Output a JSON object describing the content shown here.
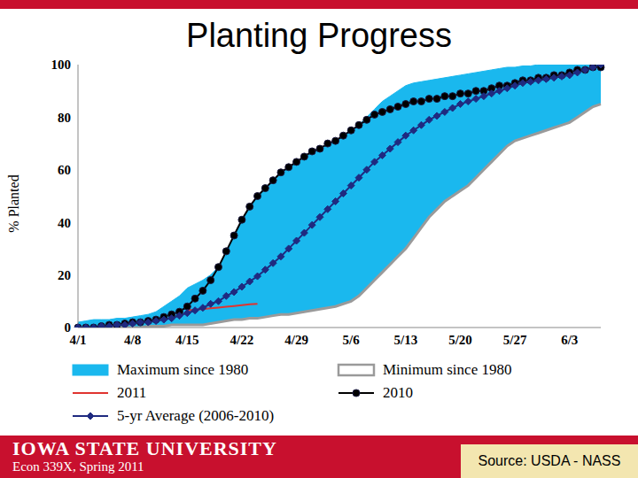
{
  "chart_data": {
    "type": "line",
    "title": "Planting Progress",
    "y_label": "% Planted",
    "categories": [
      "4/1",
      null,
      null,
      null,
      null,
      null,
      null,
      "4/8",
      null,
      null,
      null,
      null,
      null,
      null,
      "4/15",
      null,
      null,
      null,
      null,
      null,
      null,
      "4/22",
      null,
      null,
      null,
      null,
      null,
      null,
      "4/29",
      null,
      null,
      null,
      null,
      null,
      null,
      "5/6",
      null,
      null,
      null,
      null,
      null,
      null,
      "5/13",
      null,
      null,
      null,
      null,
      null,
      null,
      "5/20",
      null,
      null,
      null,
      null,
      null,
      null,
      "5/27",
      null,
      null,
      null,
      null,
      null,
      null,
      "6/3",
      null,
      null,
      null,
      null
    ],
    "ylim": [
      0,
      100
    ],
    "yticks": [
      0,
      20,
      40,
      60,
      80,
      100
    ],
    "grid": false,
    "series": [
      {
        "name": "Maximum since 1980",
        "type": "area",
        "color": "#1ab8ee",
        "values": [
          2,
          2.5,
          3,
          3,
          3,
          3.5,
          3.5,
          4,
          4.5,
          5,
          6,
          8,
          10,
          12,
          15,
          16.5,
          18,
          20,
          23,
          29,
          35,
          41,
          46,
          50,
          53,
          56,
          59,
          61,
          63,
          65,
          67,
          68,
          70,
          71,
          73,
          75,
          77,
          80,
          83,
          86,
          88,
          90,
          92,
          93,
          93.5,
          94,
          94.5,
          95,
          95.5,
          96,
          96.5,
          97,
          97.5,
          98,
          98.5,
          99,
          99,
          99.5,
          99.5,
          100,
          100,
          100,
          100,
          100,
          100,
          100,
          100,
          100
        ]
      },
      {
        "name": "Minimum since 1980",
        "type": "area",
        "color": "#9a9a9a",
        "values": [
          0,
          0,
          0,
          0,
          0,
          0,
          0,
          0,
          0,
          0.5,
          0.5,
          0.5,
          1,
          1,
          1,
          1,
          1,
          1.5,
          2,
          2.5,
          3,
          3,
          3.5,
          3.5,
          4,
          4.5,
          5,
          5,
          5.5,
          6,
          6.5,
          7,
          7.5,
          8,
          9,
          10,
          12,
          15,
          18,
          21,
          24,
          27,
          30,
          34,
          38,
          42,
          45,
          48,
          50,
          52,
          54,
          57,
          60,
          63,
          66,
          69,
          71,
          72,
          73,
          74,
          75,
          76,
          77,
          78,
          80,
          82,
          84,
          85
        ]
      },
      {
        "name": "2011",
        "type": "line",
        "color": "#e0342f",
        "marker": "none",
        "line_style": "solid",
        "values": [
          null,
          null,
          null,
          null,
          null,
          null,
          null,
          null,
          null,
          null,
          null,
          null,
          null,
          null,
          6.5,
          6.8,
          7,
          7.3,
          7.6,
          7.9,
          8.2,
          8.5,
          8.8,
          9,
          null,
          null,
          null,
          null,
          null,
          null,
          null,
          null,
          null,
          null,
          null,
          null,
          null,
          null,
          null,
          null,
          null,
          null,
          null,
          null,
          null,
          null,
          null,
          null,
          null,
          null,
          null,
          null,
          null,
          null,
          null,
          null,
          null,
          null,
          null,
          null,
          null,
          null,
          null,
          null,
          null,
          null,
          null,
          null
        ]
      },
      {
        "name": "2010",
        "type": "line",
        "color": "#000000",
        "marker": "circle",
        "line_style": "solid",
        "values": [
          0,
          0,
          0,
          0.5,
          1,
          1,
          1.5,
          2,
          2,
          2.5,
          3,
          4,
          5,
          6,
          8,
          11,
          14,
          18,
          23,
          29,
          35,
          41,
          46,
          50,
          53,
          56,
          59,
          61,
          63,
          65,
          67,
          68,
          70,
          71,
          73,
          75,
          77,
          79,
          81,
          82,
          83,
          84,
          85,
          86,
          86,
          87,
          87,
          88,
          88,
          89,
          89,
          90,
          90,
          91,
          92,
          92,
          93,
          94,
          94,
          95,
          95,
          96,
          96,
          97,
          98,
          98,
          99,
          99
        ]
      },
      {
        "name": "5-yr Average (2006-2010)",
        "type": "line",
        "color": "#1f2a80",
        "marker": "diamond",
        "line_style": "solid",
        "values": [
          0,
          0,
          0,
          0.5,
          0.5,
          1,
          1,
          1.5,
          2,
          2,
          2.5,
          3,
          3.5,
          4.5,
          5.5,
          6.5,
          7.5,
          9,
          10,
          12,
          13.5,
          15.5,
          17.5,
          19.5,
          22,
          24.5,
          27,
          30,
          33,
          36,
          39,
          42,
          45,
          48,
          51,
          54,
          57,
          60,
          63,
          65.5,
          68,
          70.5,
          73,
          75,
          77,
          79,
          80.5,
          82,
          83.5,
          85,
          86,
          87,
          88,
          89,
          90,
          91,
          92,
          93,
          93.5,
          94,
          94.5,
          95,
          95.5,
          96,
          97,
          98,
          99,
          100
        ]
      }
    ]
  },
  "footer": {
    "institution": "IOWA STATE UNIVERSITY",
    "course": "Econ 339X, Spring 2011",
    "source": "Source: USDA - NASS"
  }
}
